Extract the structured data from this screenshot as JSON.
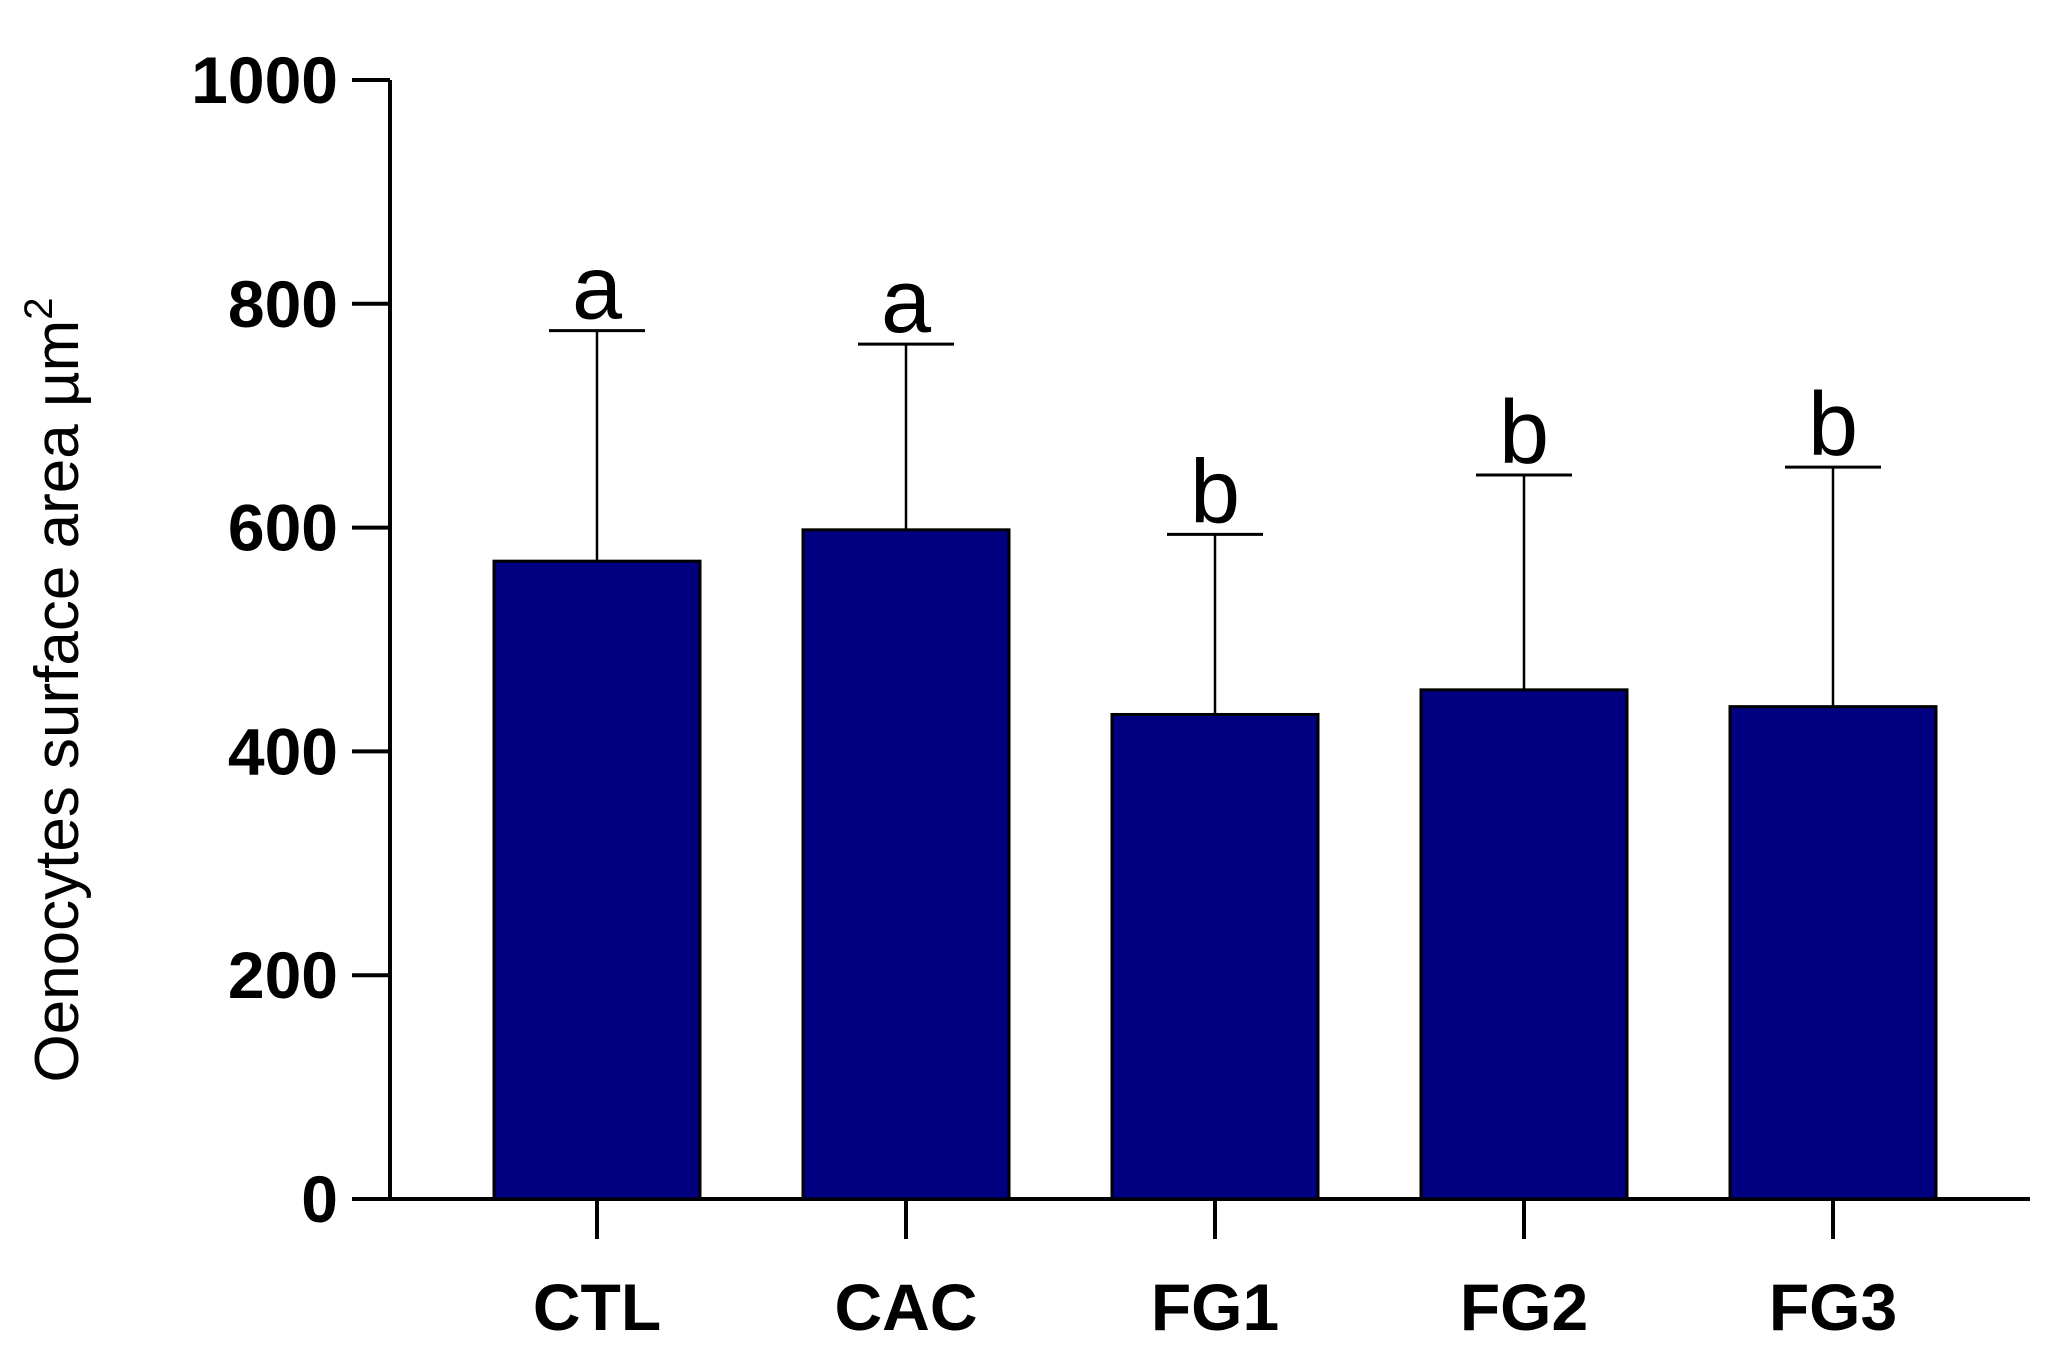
{
  "chart_data": {
    "type": "bar",
    "title": "",
    "xlabel": "",
    "ylabel": "Oenocytes surface area µm",
    "ylabel_superscript": "2",
    "categories": [
      "CTL",
      "CAC",
      "FG1",
      "FG2",
      "FG3"
    ],
    "series": [
      {
        "values": [
          570,
          598,
          433,
          455,
          440
        ],
        "error_upper": [
          776,
          764,
          594,
          647,
          654
        ],
        "significance": [
          "a",
          "a",
          "b",
          "b",
          "b"
        ],
        "color": "#000080"
      }
    ],
    "ylim": [
      0,
      1000
    ],
    "yticks": [
      "0",
      "200",
      "400",
      "600",
      "800",
      "1000"
    ],
    "grid": false,
    "legend": "none"
  }
}
